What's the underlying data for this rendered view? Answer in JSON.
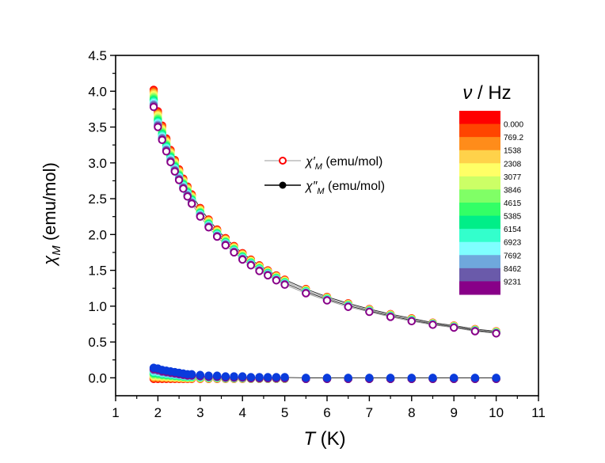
{
  "chart_data": {
    "type": "scatter",
    "xlabel_italic": "T",
    "xlabel_unit": " (K)",
    "ylabel_symbol": "χ",
    "ylabel_sub": "M",
    "ylabel_unit": " (emu/mol)",
    "xlim": [
      1,
      11
    ],
    "ylim": [
      -0.25,
      4.5
    ],
    "xticks": [
      "1",
      "2",
      "3",
      "4",
      "5",
      "6",
      "7",
      "8",
      "9",
      "10",
      "11"
    ],
    "yticks": [
      "0.0",
      "0.5",
      "1.0",
      "1.5",
      "2.0",
      "2.5",
      "3.0",
      "3.5",
      "4.0",
      "4.5"
    ],
    "xtick_values": [
      1,
      2,
      3,
      4,
      5,
      6,
      7,
      8,
      9,
      10,
      11
    ],
    "ytick_values": [
      0,
      0.5,
      1,
      1.5,
      2,
      2.5,
      3,
      3.5,
      4,
      4.5
    ],
    "temperatures": [
      1.9,
      2.0,
      2.1,
      2.2,
      2.3,
      2.4,
      2.5,
      2.6,
      2.7,
      2.8,
      3.0,
      3.2,
      3.4,
      3.6,
      3.8,
      4.0,
      4.2,
      4.4,
      4.6,
      4.8,
      5.0,
      5.5,
      6.0,
      6.5,
      7.0,
      7.5,
      8.0,
      8.5,
      9.0,
      9.5,
      10.0
    ],
    "chi_prime_at_lowest_frequency": [
      4.02,
      3.72,
      3.52,
      3.34,
      3.18,
      3.04,
      2.91,
      2.78,
      2.67,
      2.56,
      2.37,
      2.21,
      2.07,
      1.95,
      1.84,
      1.74,
      1.65,
      1.57,
      1.5,
      1.43,
      1.37,
      1.24,
      1.13,
      1.04,
      0.96,
      0.89,
      0.83,
      0.77,
      0.73,
      0.68,
      0.65
    ],
    "chi_prime_at_highest_frequency": [
      3.78,
      3.5,
      3.32,
      3.16,
      3.01,
      2.88,
      2.76,
      2.64,
      2.53,
      2.43,
      2.25,
      2.1,
      1.97,
      1.85,
      1.75,
      1.65,
      1.57,
      1.49,
      1.43,
      1.36,
      1.3,
      1.18,
      1.08,
      0.99,
      0.92,
      0.85,
      0.79,
      0.74,
      0.7,
      0.65,
      0.62
    ],
    "chi_double_prime_at_highest_frequency": [
      0.14,
      0.13,
      0.11,
      0.1,
      0.09,
      0.08,
      0.07,
      0.06,
      0.05,
      0.05,
      0.04,
      0.03,
      0.03,
      0.02,
      0.02,
      0.02,
      0.01,
      0.01,
      0.01,
      0.01,
      0.01,
      0.0,
      0.0,
      0.0,
      0.0,
      0.0,
      0.0,
      0.0,
      0.0,
      0.0,
      0.0
    ],
    "frequency_colors": [
      "#ff0000",
      "#ff4500",
      "#ff8c1a",
      "#ffd24a",
      "#ffff66",
      "#ccff66",
      "#80ff66",
      "#33ff66",
      "#00ee88",
      "#33ffcc",
      "#7fffff",
      "#6fa8dc",
      "#6a5aaa",
      "#880088"
    ],
    "legend": {
      "chi_prime": {
        "symbol": "χ′",
        "sub": "M",
        "unit": " (emu/mol)"
      },
      "chi_double_prime": {
        "symbol": "χ″",
        "sub": "M",
        "unit": " (emu/mol)"
      }
    },
    "colorbar": {
      "title_symbol": "ν",
      "title_unit": " / Hz",
      "labels": [
        "0.000",
        "769.2",
        "1538",
        "2308",
        "3077",
        "3846",
        "4615",
        "5385",
        "6154",
        "6923",
        "7692",
        "8462",
        "9231"
      ]
    }
  }
}
